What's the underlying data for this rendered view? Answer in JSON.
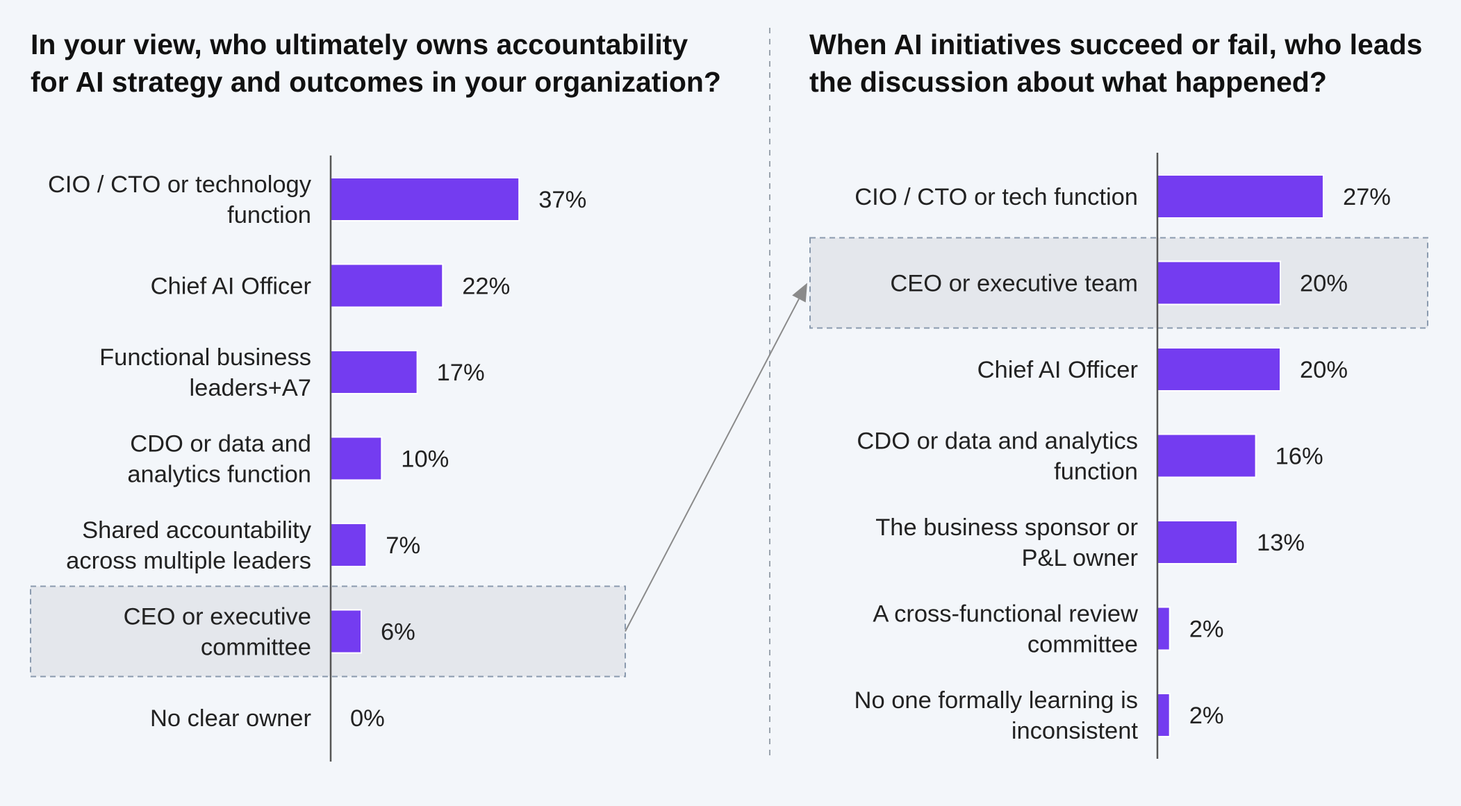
{
  "colors": {
    "background": "#f3f6fa",
    "bar": "#743cf0",
    "bar_stroke": "#ffffff",
    "highlight_fill": "#e4e7ec",
    "highlight_stroke": "#8a9aae",
    "axis": "#555555",
    "divider": "#9aa3ad",
    "arrow": "#8a8a8a",
    "text": "#222222"
  },
  "chart_data": [
    {
      "type": "bar",
      "orientation": "horizontal",
      "title": "In your view, who ultimately owns accountability for AI strategy and outcomes in your organization?",
      "title_lines": [
        "In your view, who ultimately owns accountability",
        "for AI strategy and outcomes in your organization?"
      ],
      "categories": [
        "CIO / CTO or technology function",
        "Chief AI Officer",
        "Functional business leaders+A7",
        "CDO or data and analytics function",
        "Shared accountability across multiple leaders",
        "CEO or executive committee",
        "No clear owner"
      ],
      "category_lines": [
        [
          "CIO / CTO or technology",
          "function"
        ],
        [
          "Chief AI Officer"
        ],
        [
          "Functional business",
          "leaders+A7"
        ],
        [
          "CDO or data and",
          "analytics function"
        ],
        [
          "Shared accountability",
          "across multiple leaders"
        ],
        [
          "CEO or executive",
          "committee"
        ],
        [
          "No clear owner"
        ]
      ],
      "values": [
        37,
        22,
        17,
        10,
        7,
        6,
        0
      ],
      "value_labels": [
        "37%",
        "22%",
        "17%",
        "10%",
        "7%",
        "6%",
        "0%"
      ],
      "unit": "%",
      "highlighted_category": "CEO or executive committee",
      "xlabel": "",
      "ylabel": "",
      "grid": false,
      "legend": "none"
    },
    {
      "type": "bar",
      "orientation": "horizontal",
      "title": "When AI initiatives succeed or fail, who leads the discussion about what happened?",
      "title_lines": [
        "When AI initiatives succeed or fail, who leads",
        "the discussion about what happened?"
      ],
      "categories": [
        "CIO / CTO or tech function",
        "CEO or executive team",
        "Chief AI Officer",
        "CDO or data and analytics function",
        "The business sponsor or P&L owner",
        "A cross-functional review committee",
        "No one formally learning is inconsistent"
      ],
      "category_lines": [
        [
          "CIO / CTO or tech function"
        ],
        [
          "CEO or executive team"
        ],
        [
          "Chief AI Officer"
        ],
        [
          "CDO or data and analytics",
          "function"
        ],
        [
          "The business sponsor or",
          "P&L owner"
        ],
        [
          "A cross-functional review",
          "committee"
        ],
        [
          "No one formally learning is",
          "inconsistent"
        ]
      ],
      "values": [
        27,
        20,
        20,
        16,
        13,
        2,
        2
      ],
      "value_labels": [
        "27%",
        "20%",
        "20%",
        "16%",
        "13%",
        "2%",
        "2%"
      ],
      "unit": "%",
      "highlighted_category": "CEO or executive team",
      "xlabel": "",
      "ylabel": "",
      "grid": false,
      "legend": "none"
    }
  ]
}
